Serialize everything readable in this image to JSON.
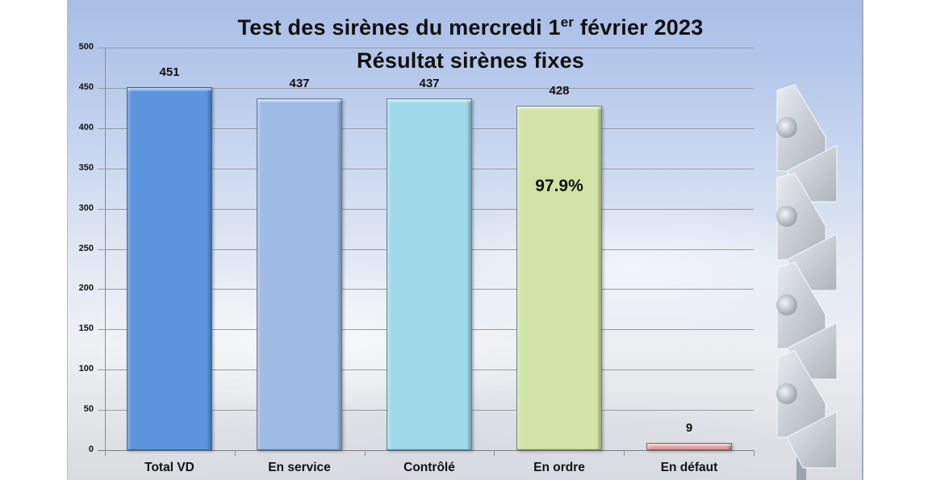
{
  "chart_data": {
    "type": "bar",
    "title": "Test des sirènes du mercredi 1er février 2023",
    "subtitle": "Résultat sirènes fixes",
    "categories": [
      "Total VD",
      "En service",
      "Contrôlé",
      "En ordre",
      "En défaut"
    ],
    "values": [
      451,
      437,
      437,
      428,
      9
    ],
    "data_labels": [
      "451",
      "437",
      "437",
      "428",
      "9"
    ],
    "bar_colors": [
      "#5b95de",
      "#9dbbe3",
      "#9fd9e9",
      "#d1e3a6",
      "#e59d9b"
    ],
    "annotations": [
      {
        "category": "En ordre",
        "text": "97.9%"
      }
    ],
    "xlabel": "",
    "ylabel": "",
    "ylim": [
      0,
      500
    ],
    "yticks": [
      0,
      50,
      100,
      150,
      200,
      250,
      300,
      350,
      400,
      450,
      500
    ],
    "grid": true,
    "legend": "none"
  },
  "title": {
    "line1_main": "Test des sirènes du mercredi 1",
    "line1_sup": "er",
    "line1_end": " février 2023",
    "line2": "Résultat sirènes fixes"
  },
  "decor": {
    "image": "outdoor-siren-tower"
  }
}
